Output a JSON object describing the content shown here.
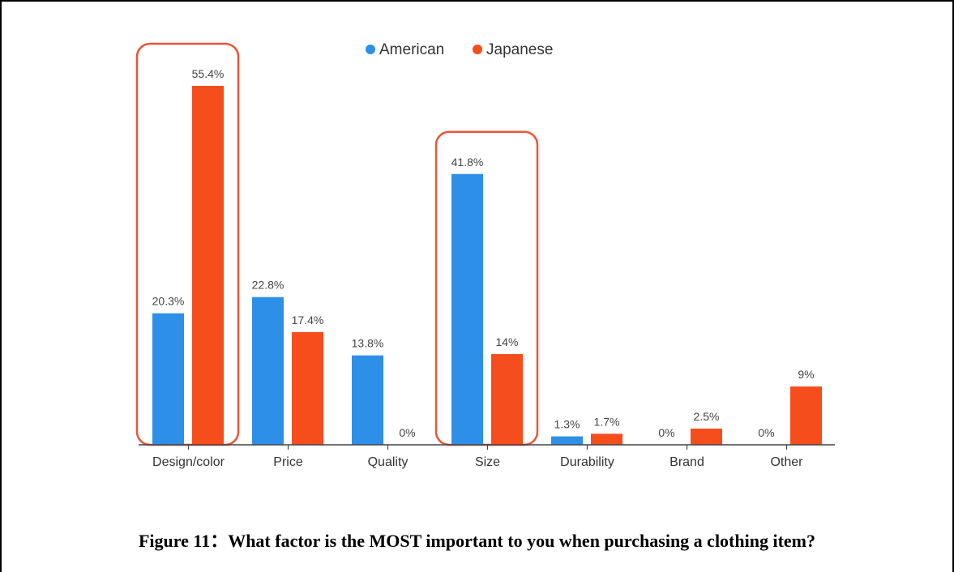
{
  "chart_data": {
    "type": "bar",
    "categories": [
      "Design/color",
      "Price",
      "Quality",
      "Size",
      "Durability",
      "Brand",
      "Other"
    ],
    "series": [
      {
        "name": "American",
        "values": [
          20.3,
          22.8,
          13.8,
          41.8,
          1.3,
          0,
          0
        ],
        "labels": [
          "20.3%",
          "22.8%",
          "13.8%",
          "41.8%",
          "1.3%",
          "0%",
          "0%"
        ]
      },
      {
        "name": "Japanese",
        "values": [
          55.4,
          17.4,
          0,
          14,
          1.7,
          2.5,
          9
        ],
        "labels": [
          "55.4%",
          "17.4%",
          "0%",
          "14%",
          "1.7%",
          "2.5%",
          "9%"
        ]
      }
    ],
    "ylim": [
      0,
      56
    ],
    "grid": false,
    "legend": "top-center",
    "highlighted_categories": [
      "Design/color",
      "Size"
    ],
    "colors": {
      "American": "#2e8fe8",
      "Japanese": "#f54d1b",
      "highlight": "#e9563a"
    }
  },
  "caption": "Figure 11：What factor is the MOST important to you when purchasing a clothing item?"
}
